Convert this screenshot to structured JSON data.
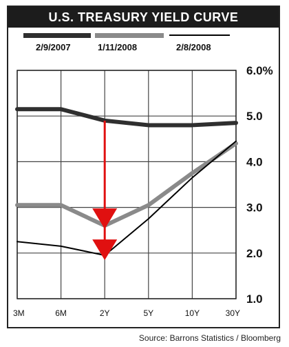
{
  "title": "U.S. TREASURY YIELD CURVE",
  "source": "Source: Barrons Statistics / Bloomberg",
  "colors": {
    "series_2007": "#2f2f2f",
    "series_jan2008": "#8a8a8a",
    "series_feb2008": "#000000",
    "arrow": "#e01010"
  },
  "chart_data": {
    "type": "line",
    "title": "U.S. TREASURY YIELD CURVE",
    "categories": [
      "3M",
      "6M",
      "2Y",
      "5Y",
      "10Y",
      "30Y"
    ],
    "y_tick_labels": [
      "6.0%",
      "5.0",
      "4.0",
      "3.0",
      "2.0",
      "1.0"
    ],
    "ylim": [
      1.0,
      6.0
    ],
    "grid": true,
    "legend_position": "top",
    "series": [
      {
        "name": "2/9/2007",
        "values": [
          5.15,
          5.15,
          4.9,
          4.8,
          4.8,
          4.85
        ]
      },
      {
        "name": "1/11/2008",
        "values": [
          3.05,
          3.05,
          2.6,
          3.05,
          3.75,
          4.4
        ]
      },
      {
        "name": "2/8/2008",
        "values": [
          2.25,
          2.15,
          1.95,
          2.75,
          3.65,
          4.45
        ]
      }
    ],
    "annotation": {
      "type": "arrow",
      "category": "2Y",
      "from": 4.9,
      "to": 1.95
    }
  }
}
